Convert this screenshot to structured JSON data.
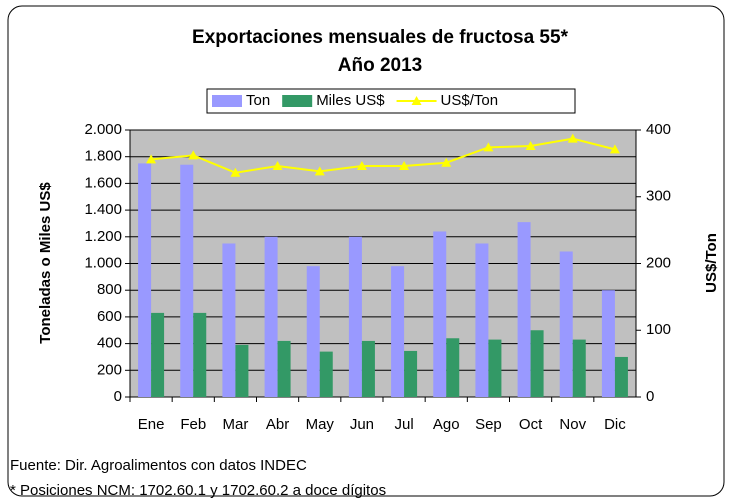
{
  "chart_data": {
    "type": "bar",
    "title": "Exportaciones mensuales de fructosa 55*",
    "subtitle": "Año 2013",
    "y_label": "Toneladas o Miles US$",
    "y2_label": "US$/Ton",
    "categories": [
      "Ene",
      "Feb",
      "Mar",
      "Abr",
      "May",
      "Jun",
      "Jul",
      "Ago",
      "Sep",
      "Oct",
      "Nov",
      "Dic"
    ],
    "series": [
      {
        "name": "Ton",
        "color": "#9999ff",
        "type": "bar",
        "values": [
          1750,
          1740,
          1150,
          1200,
          980,
          1200,
          980,
          1240,
          1150,
          1310,
          1090,
          800
        ]
      },
      {
        "name": "Miles US$",
        "color": "#339966",
        "type": "bar",
        "values": [
          630,
          630,
          390,
          420,
          340,
          420,
          345,
          440,
          430,
          500,
          430,
          300
        ]
      },
      {
        "name": "US$/Ton",
        "color": "#ffff00",
        "type": "line",
        "axis": "y2",
        "values": [
          356,
          362,
          336,
          346,
          338,
          346,
          346,
          351,
          374,
          376,
          387,
          371
        ]
      }
    ],
    "ylim": [
      0,
      2000
    ],
    "yticks": [
      0,
      200,
      400,
      600,
      800,
      {
        "value": 1000,
        "label": "1.000"
      },
      {
        "value": 1200,
        "label": "1.200"
      },
      {
        "value": 1400,
        "label": "1.400"
      },
      {
        "value": 1600,
        "label": "1.600"
      },
      {
        "value": 1800,
        "label": "1.800"
      },
      {
        "value": 2000,
        "label": "2.000"
      }
    ],
    "y2lim": [
      0,
      400
    ],
    "y2ticks": [
      0,
      100,
      200,
      300,
      400
    ],
    "grid": true,
    "legend": "top",
    "notes": [
      "Fuente: Dir. Agroalimentos con datos INDEC",
      "* Posiciones NCM: 1702.60.1 y 1702.60.2 a doce dígitos"
    ]
  }
}
